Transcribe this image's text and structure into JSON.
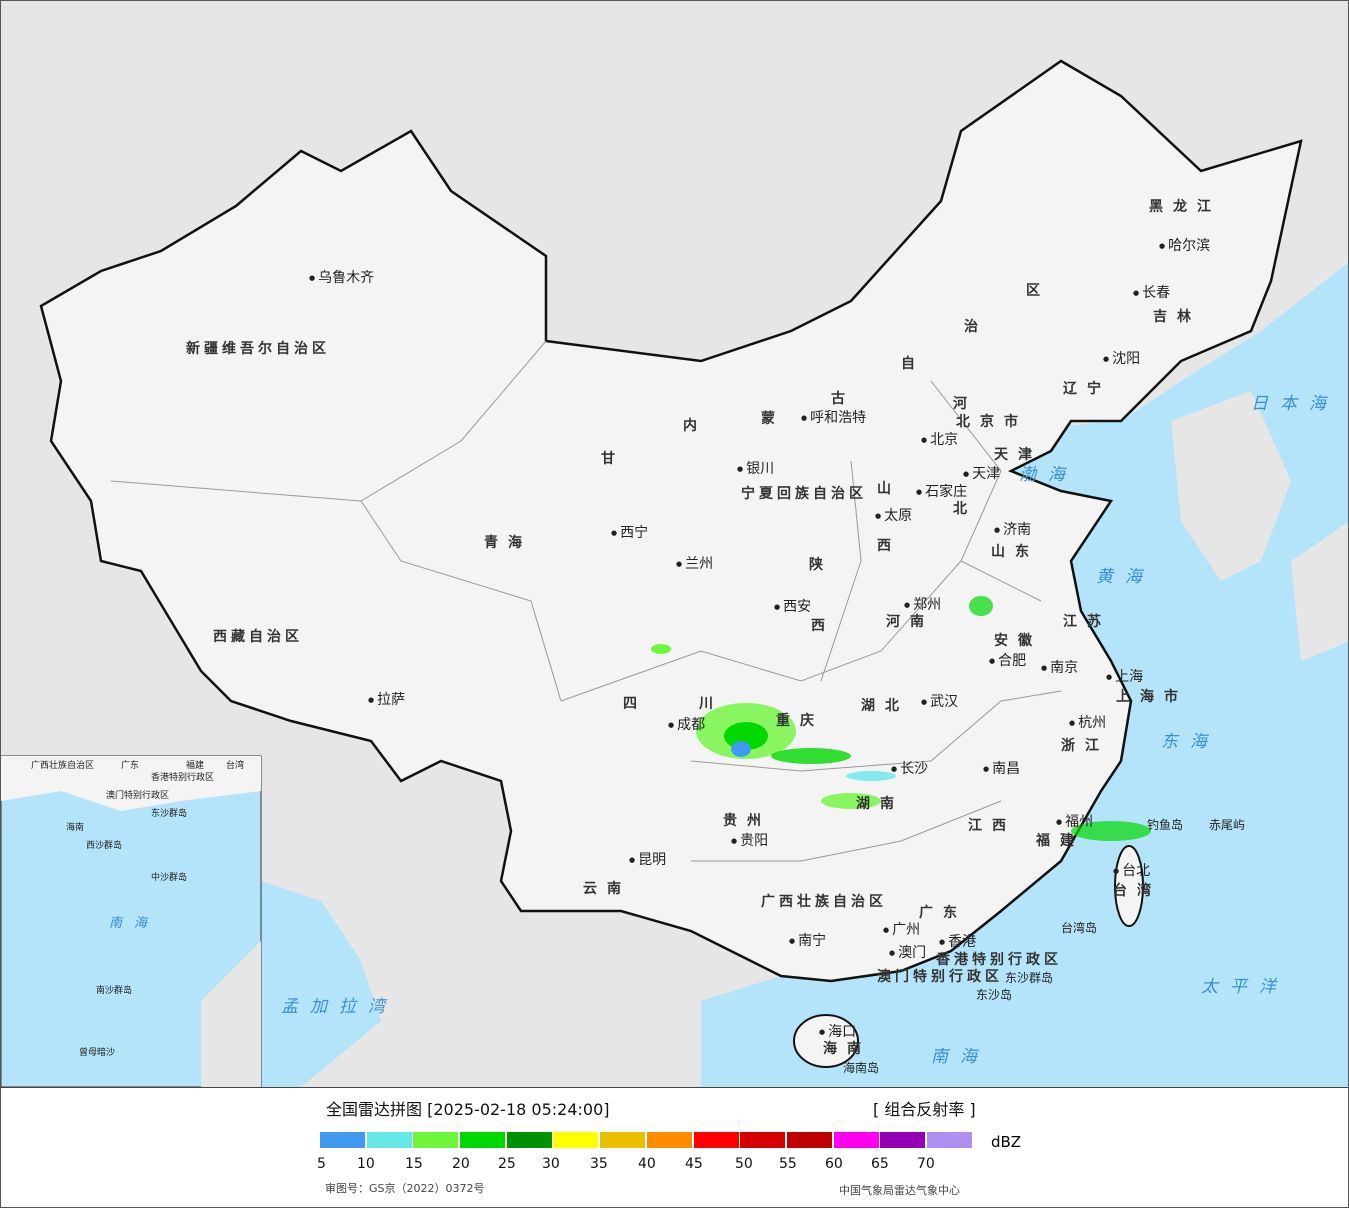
{
  "legend": {
    "title": "全国雷达拼图 [2025-02-18 05:24:00]",
    "product": "[ 组合反射率 ]",
    "unit": "dBZ",
    "ticks": [
      "5",
      "10",
      "15",
      "20",
      "25",
      "30",
      "35",
      "40",
      "45",
      "50",
      "55",
      "60",
      "65",
      "70"
    ],
    "colors": [
      "#409af0",
      "#66e8e8",
      "#6ef63c",
      "#00d800",
      "#009200",
      "#ffff00",
      "#e8c000",
      "#ff8c00",
      "#ff0000",
      "#d60000",
      "#c00000",
      "#ff00f0",
      "#9600b4",
      "#ae90f0"
    ],
    "approval": "审图号：GS京（2022）0372号",
    "agency": "中国气象局雷达气象中心"
  },
  "map": {
    "colors": {
      "land_china": "#f4f4f4",
      "land_other": "#e6e6e6",
      "sea": "#b4e4fa",
      "border": "#111111",
      "river": "#3aa0e8"
    },
    "provinces": [
      "新疆维吾尔自治区",
      "西藏自治区",
      "青海",
      "甘",
      "内",
      "蒙",
      "古",
      "自",
      "治",
      "区",
      "黑龙江",
      "吉林",
      "辽宁",
      "河",
      "北",
      "山",
      "西",
      "陕",
      "西",
      "河南",
      "山东",
      "江苏",
      "安徽",
      "湖北",
      "四",
      "川",
      "重庆",
      "贵州",
      "云南",
      "湖南",
      "江西",
      "浙江",
      "福建",
      "广东",
      "广西壮族自治区",
      "海南",
      "台湾",
      "上海市",
      "北京市",
      "天津",
      "宁夏回族自治区",
      "香港特别行政区",
      "澳门特别行政区"
    ],
    "cities": [
      "乌鲁木齐",
      "拉萨",
      "西宁",
      "兰州",
      "银川",
      "呼和浩特",
      "北京",
      "天津",
      "石家庄",
      "太原",
      "济南",
      "郑州",
      "西安",
      "成都",
      "武汉",
      "合肥",
      "南京",
      "上海",
      "杭州",
      "南昌",
      "长沙",
      "贵阳",
      "昆明",
      "南宁",
      "广州",
      "澳门",
      "香港",
      "福州",
      "台北",
      "海口",
      "哈尔滨",
      "长春",
      "沈阳"
    ],
    "seas": [
      "渤海",
      "黄海",
      "东海",
      "南海",
      "太平洋",
      "日本海",
      "孟加拉湾"
    ],
    "islands": [
      "钓鱼岛",
      "赤尾屿",
      "东沙群岛",
      "东沙岛",
      "台湾岛",
      "海南岛"
    ],
    "inset": [
      "广西壮族自治区",
      "广东",
      "福建",
      "台湾",
      "海南",
      "香港特别行政区",
      "澳门特别行政区",
      "东沙群岛",
      "西沙群岛",
      "中沙群岛",
      "南海",
      "南沙群岛",
      "曾母暗沙"
    ]
  }
}
